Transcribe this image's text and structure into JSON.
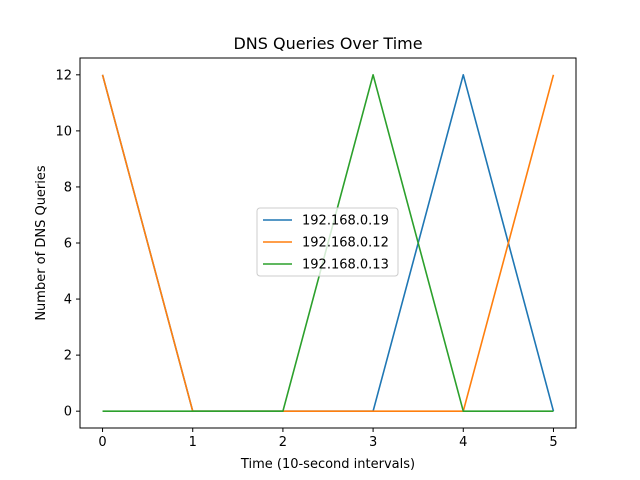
{
  "chart_data": {
    "type": "line",
    "title": "DNS Queries Over Time",
    "xlabel": "Time (10-second intervals)",
    "ylabel": "Number of DNS Queries",
    "x": [
      0,
      1,
      2,
      3,
      4,
      5
    ],
    "xlim": [
      -0.25,
      5.25
    ],
    "ylim": [
      -0.6,
      12.6
    ],
    "xticks": [
      0,
      1,
      2,
      3,
      4,
      5
    ],
    "yticks": [
      0,
      2,
      4,
      6,
      8,
      10,
      12
    ],
    "grid": false,
    "legend_position": "center",
    "series": [
      {
        "name": "192.168.0.19",
        "color": "#1f77b4",
        "values": [
          12,
          0,
          0,
          0,
          12,
          0
        ]
      },
      {
        "name": "192.168.0.12",
        "color": "#ff7f0e",
        "values": [
          12,
          0,
          0,
          0,
          0,
          12
        ]
      },
      {
        "name": "192.168.0.13",
        "color": "#2ca02c",
        "values": [
          0,
          0,
          0,
          12,
          0,
          0
        ]
      }
    ]
  }
}
